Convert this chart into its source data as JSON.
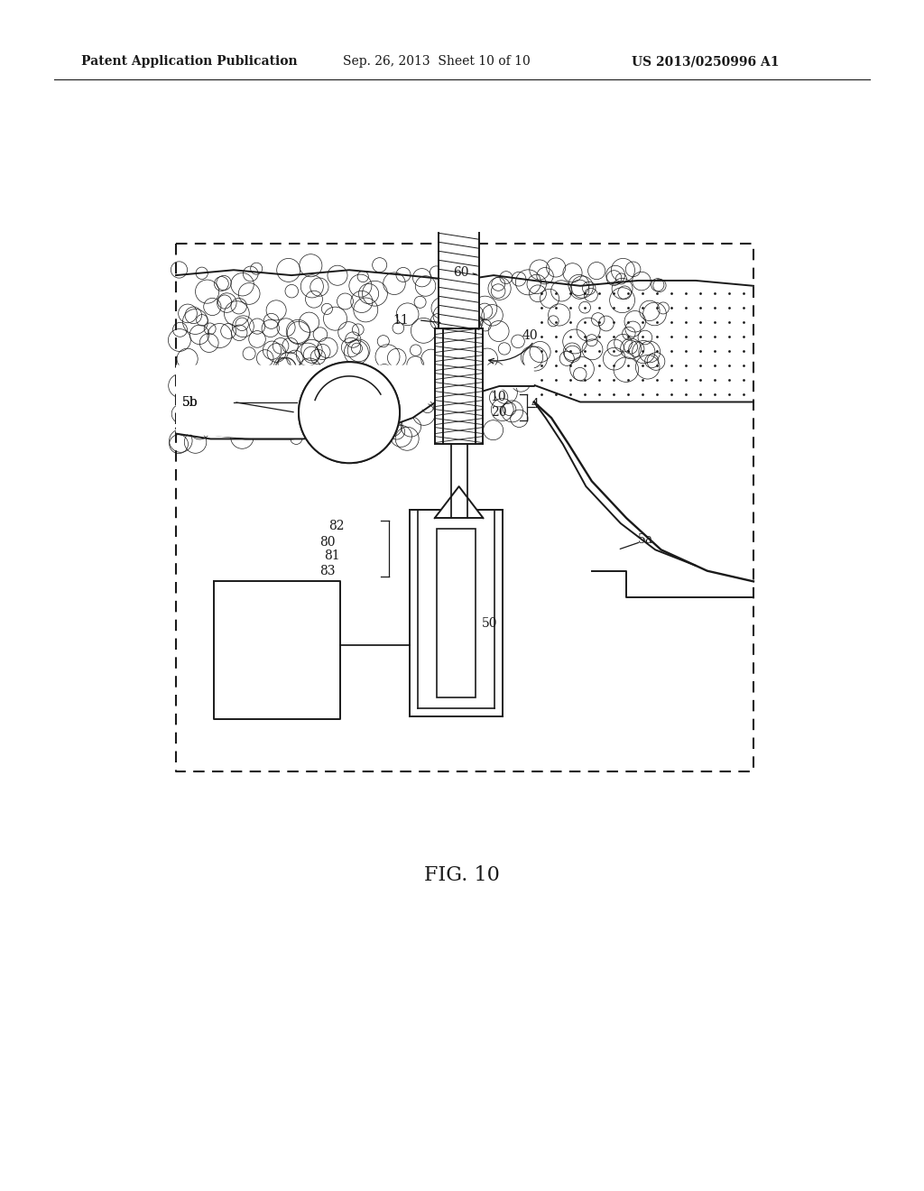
{
  "bg_color": "#ffffff",
  "header_left": "Patent Application Publication",
  "header_mid": "Sep. 26, 2013  Sheet 10 of 10",
  "header_right": "US 2013/0250996 A1",
  "caption": "FIG. 10",
  "line_color": "#1a1a1a"
}
